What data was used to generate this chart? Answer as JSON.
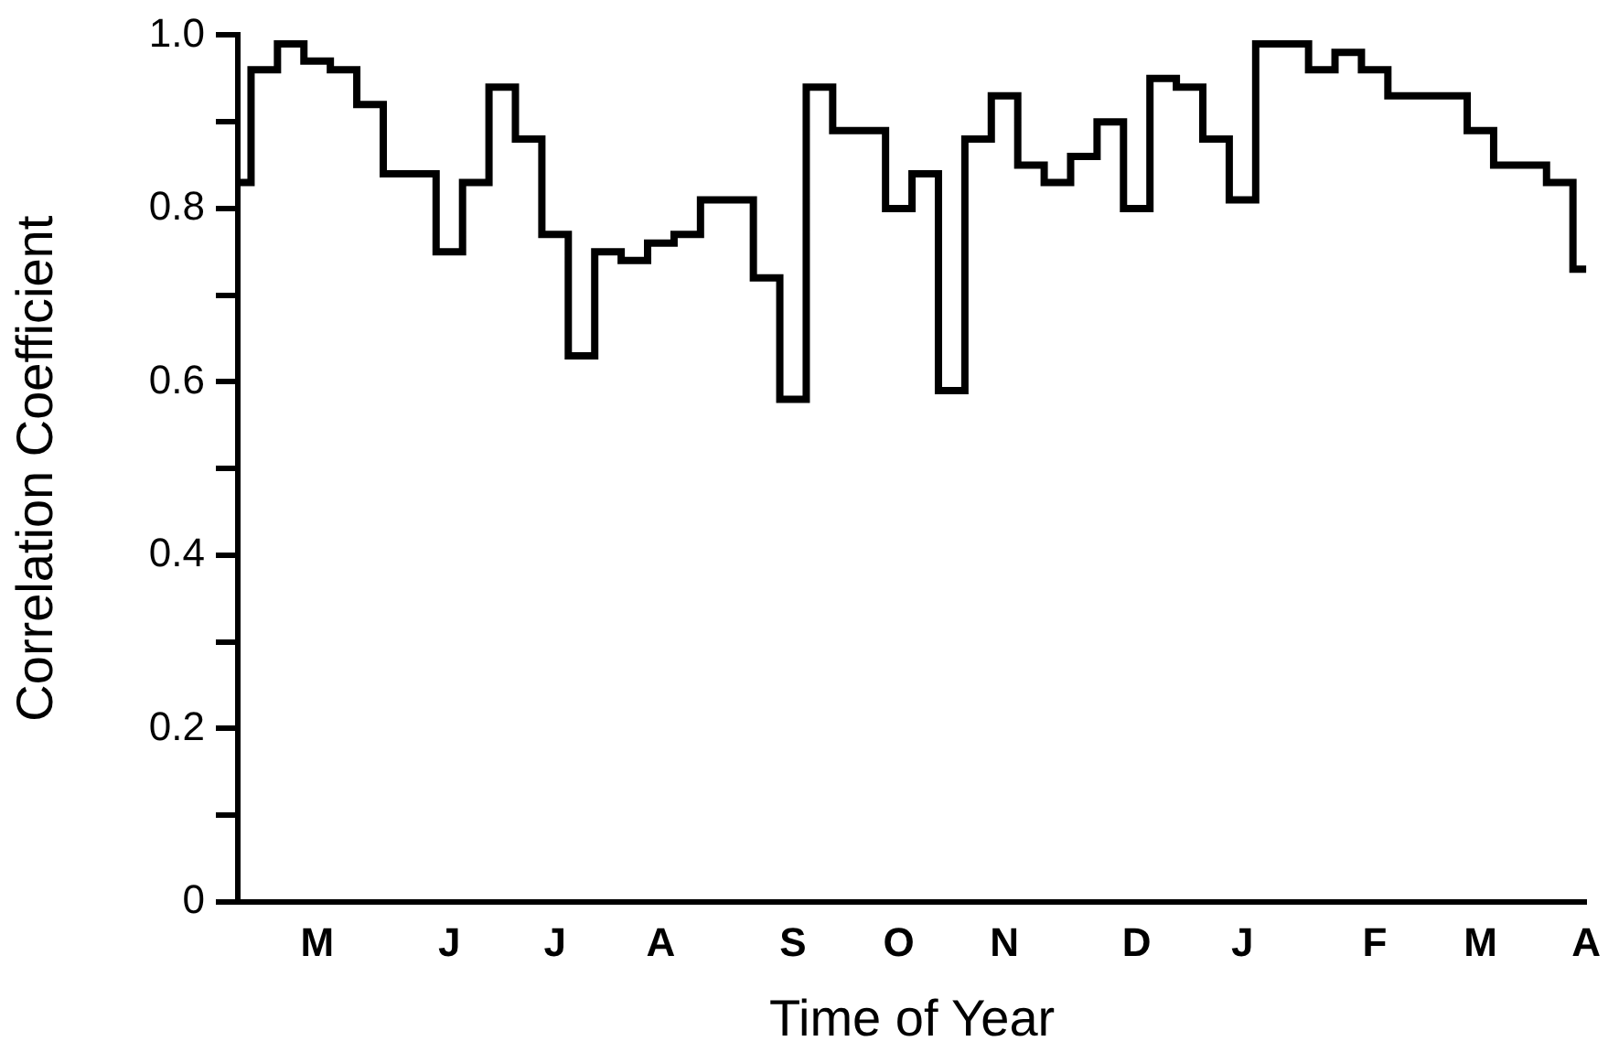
{
  "chart_data": {
    "type": "step",
    "categories": [
      null,
      null,
      null,
      "M",
      null,
      null,
      null,
      null,
      "J",
      null,
      null,
      null,
      "J",
      null,
      null,
      null,
      "A",
      null,
      null,
      null,
      null,
      "S",
      null,
      null,
      null,
      "O",
      null,
      null,
      null,
      "N",
      null,
      null,
      null,
      null,
      "D",
      null,
      null,
      null,
      "J",
      null,
      null,
      null,
      null,
      "F",
      null,
      null,
      null,
      "M",
      null,
      null,
      null,
      "A"
    ],
    "values": [
      0.83,
      0.96,
      0.99,
      0.97,
      0.96,
      0.92,
      0.84,
      0.84,
      0.75,
      0.83,
      0.94,
      0.88,
      0.77,
      0.63,
      0.75,
      0.74,
      0.76,
      0.77,
      0.81,
      0.81,
      0.72,
      0.58,
      0.94,
      0.89,
      0.89,
      0.8,
      0.84,
      0.59,
      0.88,
      0.93,
      0.85,
      0.83,
      0.86,
      0.9,
      0.8,
      0.95,
      0.94,
      0.88,
      0.81,
      0.99,
      0.99,
      0.96,
      0.98,
      0.96,
      0.93,
      0.93,
      0.93,
      0.89,
      0.85,
      0.85,
      0.83,
      0.73
    ],
    "color": "#000000",
    "ylim": [
      0,
      1
    ],
    "yticks": [
      0,
      {
        "value": 0.1,
        "label": null
      },
      0.2,
      {
        "value": 0.3,
        "label": null
      },
      0.4,
      {
        "value": 0.5,
        "label": null
      },
      0.6,
      {
        "value": 0.7,
        "label": null
      },
      0.8,
      {
        "value": 0.9,
        "label": null
      },
      {
        "value": 1,
        "label": "1.0"
      }
    ],
    "xlabel": "Time of Year",
    "ylabel": "Correlation Coefficient",
    "grid": false,
    "legend": false
  }
}
